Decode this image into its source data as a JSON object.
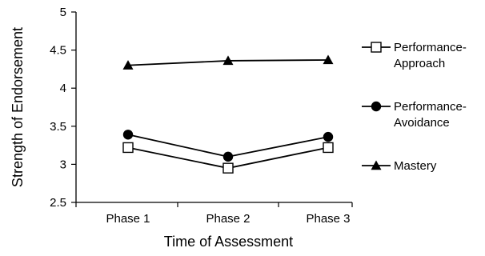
{
  "chart_data": {
    "type": "line",
    "categories": [
      "Phase 1",
      "Phase 2",
      "Phase 3"
    ],
    "xlabel": "Time of Assessment",
    "ylabel": "Strength of Endorsement",
    "ylim": [
      2.5,
      5
    ],
    "yticks": [
      "2.5",
      "3",
      "3.5",
      "4",
      "4.5",
      "5"
    ],
    "grid": false,
    "legend_position": "right",
    "series": [
      {
        "name_lines": [
          "Performance-",
          "Approach"
        ],
        "marker": "square-open",
        "color": "#000000",
        "values": [
          3.22,
          2.95,
          3.22
        ]
      },
      {
        "name_lines": [
          "Performance-",
          "Avoidance"
        ],
        "marker": "circle-filled",
        "color": "#000000",
        "values": [
          3.39,
          3.1,
          3.36
        ]
      },
      {
        "name_lines": [
          "Mastery"
        ],
        "marker": "triangle-filled",
        "color": "#000000",
        "values": [
          4.3,
          4.36,
          4.37
        ]
      }
    ]
  }
}
